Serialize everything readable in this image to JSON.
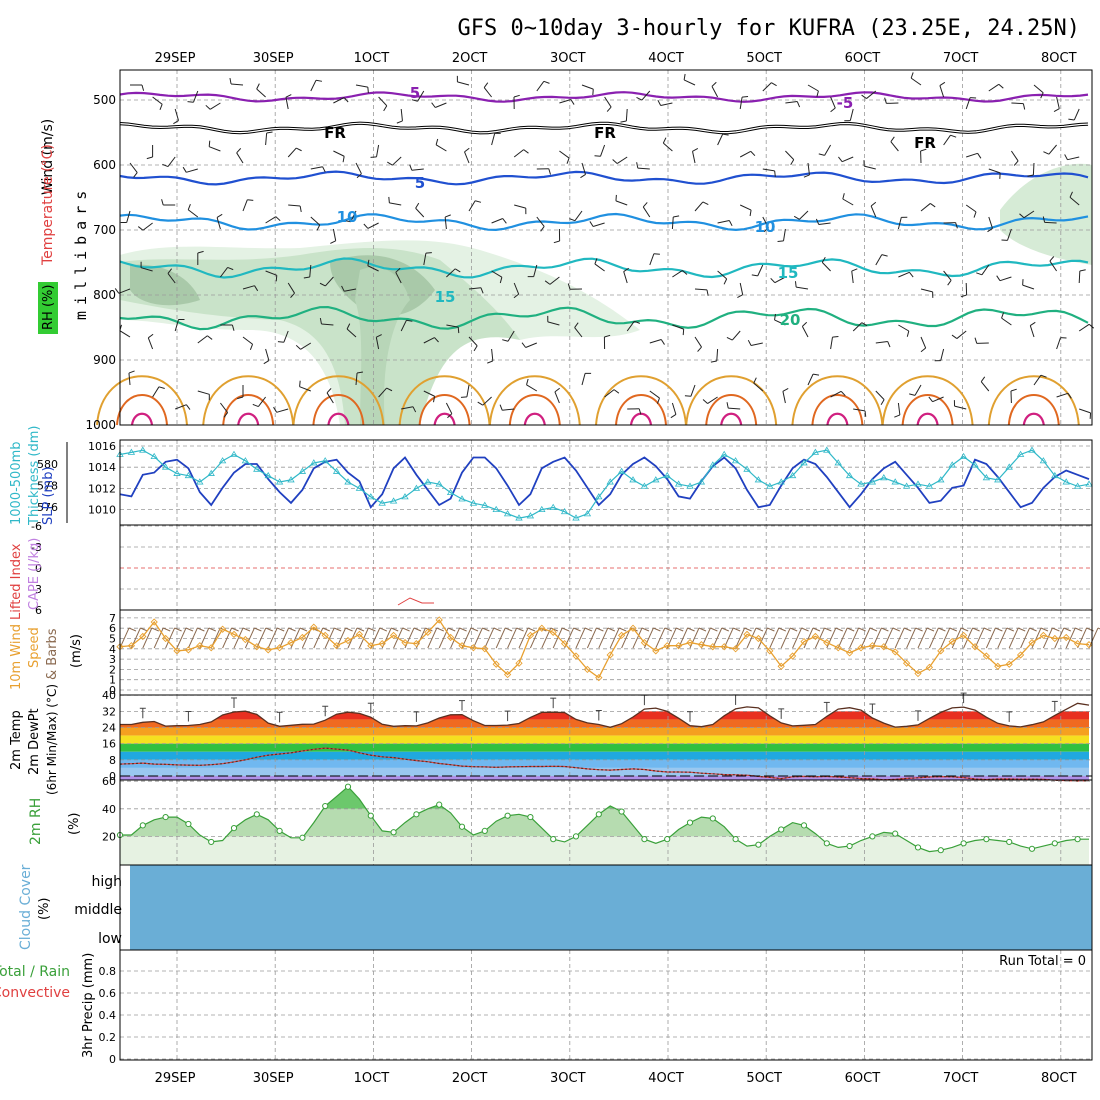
{
  "title": "GFS 0~10day 3-hourly for KUFRA (23.25E, 24.25N)",
  "dates": [
    "29SEP",
    "30SEP",
    "1OCT",
    "2OCT",
    "3OCT",
    "4OCT",
    "5OCT",
    "6OCT",
    "7OCT",
    "8OCT"
  ],
  "colors": {
    "grid": "#9a9a9a",
    "rh_fill": "#5fb85f",
    "cloud": "#6aaed6",
    "thickness": "#2040c0",
    "slp": "#30b8c8",
    "wind_speed": "#e8a030",
    "barbs": "#8b6a50",
    "rh2m": "#3aa03a"
  },
  "panels": {
    "upper": {
      "labels": [
        "Wind (m/s)",
        "Temperature (°C)",
        "RH (%)"
      ],
      "axis_label": "millibars",
      "ticks": [
        "500",
        "600",
        "700",
        "800",
        "900",
        "1000"
      ],
      "contour_labels": [
        "5",
        "FR",
        "FR",
        "FR",
        "-5",
        "5",
        "10",
        "10",
        "15",
        "15",
        "20"
      ]
    },
    "thickness": {
      "labels": [
        "1000-500mb",
        "Thickness (dm)",
        "SLP (mb)"
      ],
      "left_ticks": [
        "580",
        "578",
        "576"
      ],
      "right_ticks": [
        "1016",
        "1014",
        "1012",
        "1010"
      ]
    },
    "instability": {
      "labels": [
        "Lifted Index",
        "CAPE (J/kg)"
      ],
      "ticks": [
        "-6",
        "-3",
        "0",
        "3",
        "6"
      ]
    },
    "wind10m": {
      "labels": [
        "10m Wind",
        "Speed",
        "& Barbs",
        "(m/s)"
      ],
      "ticks": [
        "7",
        "6",
        "5",
        "4",
        "3",
        "2",
        "1",
        "0"
      ]
    },
    "temp2m": {
      "labels": [
        "2m Temp",
        "2m DewPt",
        "(6hr Min/Max) (°C)"
      ],
      "ticks": [
        "40",
        "32",
        "24",
        "16",
        "8",
        "0"
      ]
    },
    "rh2m": {
      "labels": [
        "2m RH",
        "(%)"
      ],
      "ticks": [
        "60",
        "40",
        "20"
      ]
    },
    "cloud": {
      "labels": [
        "Cloud Cover",
        "(%)"
      ],
      "levels": [
        "high",
        "middle",
        "low"
      ]
    },
    "precip": {
      "labels": [
        "Total / Rain",
        "Convective",
        "3hr Precip (mm)"
      ],
      "ticks": [
        "0.8",
        "0.6",
        "0.4",
        "0.2",
        "0"
      ],
      "run_total": "Run Total = 0"
    }
  },
  "chart_data": [
    {
      "type": "line",
      "panel": "thickness",
      "series": [
        {
          "name": "Thickness (dm)",
          "values": [
            577.2,
            577.0,
            579.0,
            579.2,
            580.2,
            580.4,
            579.6,
            577.4,
            576.2,
            577.8,
            579.2,
            580.0,
            580.0,
            578.6,
            577.4,
            576.4,
            577.6,
            579.6,
            580.2,
            580.4,
            579.2,
            578.4,
            576.0,
            577.2,
            579.6,
            580.6,
            579.0,
            577.6,
            576.2,
            576.8,
            579.2,
            580.6,
            580.6,
            579.6,
            578.0,
            576.2,
            577.2,
            579.6,
            580.2,
            580.6,
            579.4,
            577.8,
            576.2,
            577.2,
            579.0,
            580.0,
            580.6,
            579.8,
            578.6,
            577.0,
            576.8,
            578.4,
            579.8,
            580.6,
            579.6,
            577.6,
            576.0,
            576.2,
            578.0,
            579.6,
            580.4,
            580.0,
            578.8,
            577.4,
            576.0,
            577.2,
            578.6,
            579.6,
            580.2,
            579.0,
            577.8,
            576.4,
            576.6,
            577.8,
            578.0,
            580.4,
            580.0,
            578.8,
            577.4,
            576.0,
            576.4,
            577.8,
            578.8,
            579.4,
            579.0,
            578.6
          ]
        },
        {
          "name": "SLP (mb)",
          "values": [
            1015.2,
            1015.4,
            1015.6,
            1015.0,
            1014.0,
            1013.4,
            1013.2,
            1012.6,
            1013.4,
            1014.6,
            1015.2,
            1014.6,
            1013.8,
            1013.2,
            1012.6,
            1012.8,
            1013.6,
            1014.4,
            1014.6,
            1013.6,
            1012.6,
            1012.0,
            1011.2,
            1010.6,
            1010.8,
            1011.2,
            1012.0,
            1012.6,
            1012.4,
            1011.6,
            1011.0,
            1010.6,
            1010.4,
            1010.0,
            1009.6,
            1009.2,
            1009.4,
            1010.0,
            1010.2,
            1009.8,
            1009.2,
            1009.6,
            1011.2,
            1012.6,
            1013.6,
            1012.8,
            1012.2,
            1012.8,
            1013.2,
            1012.4,
            1012.2,
            1012.6,
            1014.2,
            1015.2,
            1014.6,
            1013.8,
            1012.8,
            1012.2,
            1012.6,
            1013.2,
            1014.4,
            1015.4,
            1015.6,
            1014.4,
            1013.2,
            1012.4,
            1012.6,
            1013.0,
            1012.6,
            1012.2,
            1012.4,
            1012.2,
            1012.8,
            1014.2,
            1015.0,
            1014.2,
            1013.0,
            1012.8,
            1014.0,
            1015.2,
            1015.6,
            1014.6,
            1013.2,
            1012.6,
            1012.2,
            1012.4
          ]
        }
      ]
    },
    {
      "type": "line",
      "panel": "wind10m",
      "series": [
        {
          "name": "Speed",
          "values": [
            4.2,
            4.3,
            5.2,
            6.6,
            5.0,
            3.8,
            3.9,
            4.3,
            4.1,
            5.9,
            5.4,
            4.9,
            4.2,
            3.9,
            4.1,
            4.6,
            5.1,
            6.1,
            5.3,
            4.3,
            4.8,
            5.4,
            4.3,
            4.5,
            5.3,
            4.6,
            4.5,
            5.6,
            6.8,
            5.1,
            4.3,
            4.1,
            4.0,
            2.5,
            1.5,
            2.6,
            5.3,
            6.0,
            5.6,
            4.5,
            3.3,
            2.0,
            1.2,
            3.4,
            5.3,
            6.0,
            4.6,
            3.8,
            4.3,
            4.3,
            4.6,
            4.4,
            4.2,
            4.2,
            4.0,
            5.4,
            5.0,
            3.8,
            2.3,
            3.3,
            4.7,
            5.2,
            4.6,
            4.1,
            3.6,
            4.1,
            4.3,
            4.2,
            3.7,
            2.6,
            1.6,
            2.2,
            3.8,
            4.7,
            5.3,
            4.2,
            3.3,
            2.3,
            2.5,
            3.4,
            4.6,
            5.3,
            5.0,
            5.1,
            4.5,
            4.4
          ]
        }
      ]
    },
    {
      "type": "area",
      "panel": "rh2m",
      "series": [
        {
          "name": "2m RH",
          "values": [
            21,
            21,
            28,
            32,
            34,
            34,
            29,
            21,
            16,
            17,
            26,
            32,
            36,
            32,
            24,
            19,
            19,
            30,
            42,
            49,
            56,
            47,
            35,
            24,
            23,
            30,
            36,
            40,
            43,
            37,
            27,
            21,
            24,
            31,
            35,
            36,
            34,
            26,
            18,
            16,
            20,
            28,
            36,
            42,
            38,
            28,
            18,
            15,
            18,
            25,
            30,
            34,
            33,
            27,
            18,
            13,
            14,
            20,
            25,
            30,
            28,
            22,
            15,
            12,
            13,
            17,
            20,
            23,
            22,
            17,
            12,
            9,
            10,
            12,
            15,
            17,
            18,
            17,
            16,
            13,
            11,
            13,
            15,
            17,
            18,
            18
          ]
        }
      ]
    },
    {
      "type": "line",
      "panel": "temp2m",
      "series": [
        {
          "name": "2m Temp",
          "values": [
            25.5,
            25.5,
            26.6,
            27.0,
            24.7,
            24.9,
            25.0,
            25.5,
            26.8,
            30.2,
            31.7,
            32.1,
            30.5,
            26.2,
            24.6,
            25.1,
            25.6,
            25.7,
            27.6,
            30.6,
            31.6,
            31.0,
            29.1,
            25.6,
            24.6,
            24.9,
            24.8,
            26.3,
            28.7,
            30.3,
            30.4,
            27.4,
            25.0,
            25.0,
            25.2,
            26.0,
            29.0,
            31.5,
            31.6,
            31.4,
            28.0,
            26.3,
            25.5,
            24.1,
            25.9,
            29.2,
            33.1,
            33.6,
            32.0,
            28.6,
            24.9,
            24.4,
            25.5,
            29.8,
            33.2,
            34.2,
            33.7,
            29.8,
            26.3,
            24.8,
            25.1,
            25.5,
            29.5,
            33.1,
            33.8,
            32.6,
            28.7,
            26.2,
            24.2,
            24.6,
            25.3,
            28.5,
            31.5,
            33.7,
            34.1,
            32.6,
            29.1,
            26.1,
            24.8,
            24.3,
            25.4,
            26.8,
            30.0,
            33.0,
            36.0,
            35.1
          ]
        },
        {
          "name": "2m DewPt",
          "values": [
            5.9,
            6.1,
            6.4,
            5.9,
            5.8,
            5.5,
            5.4,
            5.3,
            5.6,
            6.1,
            7.0,
            8.0,
            9.3,
            10.3,
            10.9,
            11.5,
            12.4,
            13.2,
            13.8,
            13.3,
            12.8,
            11.5,
            10.3,
            9.5,
            9.1,
            8.3,
            7.6,
            7.1,
            6.2,
            5.6,
            4.9,
            4.6,
            4.5,
            4.3,
            4.5,
            4.6,
            4.7,
            4.7,
            4.8,
            4.7,
            4.1,
            3.5,
            3.1,
            2.9,
            3.2,
            3.5,
            3.2,
            2.5,
            2.0,
            2.0,
            1.9,
            1.4,
            1.1,
            0.7,
            0.6,
            0.4,
            -0.2,
            -0.7,
            -1.3,
            -0.4,
            -0.2,
            -0.4,
            -0.2,
            -0.5,
            -0.8,
            -1.3,
            -1.4,
            -1.9,
            -1.7,
            -1.2,
            -0.9,
            -0.5,
            -0.3,
            -0.4,
            -0.8,
            -1.5,
            -1.8,
            -1.5,
            -1.5,
            -1.6,
            -1.6,
            -1.7,
            -2.1,
            -2.3,
            -2.5,
            -2.4
          ]
        }
      ]
    }
  ]
}
